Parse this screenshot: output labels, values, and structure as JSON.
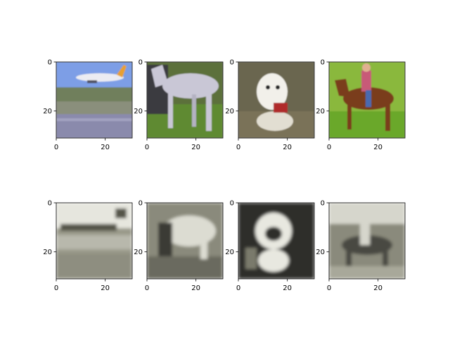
{
  "figure": {
    "background": "#ffffff",
    "axis_color": "#000000"
  },
  "chart_data": [
    {
      "type": "heatmap",
      "row": 1,
      "col": 1,
      "description_of_pixels": "original CIFAR image: airplane",
      "xlim": [
        0,
        31
      ],
      "ylim": [
        31,
        0
      ],
      "xticks": [
        0,
        20
      ],
      "yticks": [
        0,
        20
      ],
      "palette": {
        "sky": "#7d9ee6",
        "plane": "#ececf2",
        "tail": "#e8a030",
        "grass": "#6f7f5c",
        "field": "#8a8f7c",
        "runway": "#8a8aac"
      }
    },
    {
      "type": "heatmap",
      "row": 1,
      "col": 2,
      "description_of_pixels": "original CIFAR image: white horse",
      "xlim": [
        0,
        31
      ],
      "ylim": [
        31,
        0
      ],
      "xticks": [
        0,
        20
      ],
      "yticks": [
        0,
        20
      ],
      "palette": {
        "bg": "#5c6f3a",
        "horse": "#c9c7d6",
        "shadow": "#3a3a40",
        "grass": "#5f8a32"
      }
    },
    {
      "type": "heatmap",
      "row": 1,
      "col": 3,
      "description_of_pixels": "original CIFAR image: white dog",
      "xlim": [
        0,
        31
      ],
      "ylim": [
        31,
        0
      ],
      "xticks": [
        0,
        20
      ],
      "yticks": [
        0,
        20
      ],
      "palette": {
        "bg": "#6a6650",
        "dog": "#f2f0ea",
        "collar": "#b02a2a",
        "ground": "#7a7258"
      }
    },
    {
      "type": "heatmap",
      "row": 1,
      "col": 4,
      "description_of_pixels": "original CIFAR image: horse with rider",
      "xlim": [
        0,
        31
      ],
      "ylim": [
        31,
        0
      ],
      "xticks": [
        0,
        20
      ],
      "yticks": [
        0,
        20
      ],
      "palette": {
        "bg": "#8ab83e",
        "horse": "#7a3e1c",
        "rider": "#c85a78",
        "grass": "#6aa82c"
      }
    },
    {
      "type": "heatmap",
      "row": 2,
      "col": 1,
      "description_of_pixels": "reconstruction (blurry grayscale) of airplane",
      "xlim": [
        0,
        31
      ],
      "ylim": [
        31,
        0
      ],
      "xticks": [
        0,
        20
      ],
      "yticks": [
        0,
        20
      ],
      "palette": {
        "light": "#e6e6de",
        "mid": "#9a9a8a",
        "dark": "#55554a"
      }
    },
    {
      "type": "heatmap",
      "row": 2,
      "col": 2,
      "description_of_pixels": "reconstruction (blurry grayscale) of horse",
      "xlim": [
        0,
        31
      ],
      "ylim": [
        31,
        0
      ],
      "xticks": [
        0,
        20
      ],
      "yticks": [
        0,
        20
      ],
      "palette": {
        "light": "#dcdcd2",
        "mid": "#8a8a7c",
        "dark": "#3a3a34"
      }
    },
    {
      "type": "heatmap",
      "row": 2,
      "col": 3,
      "description_of_pixels": "reconstruction (blurry grayscale) of dog",
      "xlim": [
        0,
        31
      ],
      "ylim": [
        31,
        0
      ],
      "xticks": [
        0,
        20
      ],
      "yticks": [
        0,
        20
      ],
      "palette": {
        "light": "#e8e8e0",
        "mid": "#7a7a6c",
        "dark": "#2e2e2a"
      }
    },
    {
      "type": "heatmap",
      "row": 2,
      "col": 4,
      "description_of_pixels": "reconstruction (blurry grayscale) of horse with rider",
      "xlim": [
        0,
        31
      ],
      "ylim": [
        31,
        0
      ],
      "xticks": [
        0,
        20
      ],
      "yticks": [
        0,
        20
      ],
      "palette": {
        "light": "#d6d6cc",
        "mid": "#8a8a7c",
        "dark": "#4a4a42"
      }
    }
  ]
}
